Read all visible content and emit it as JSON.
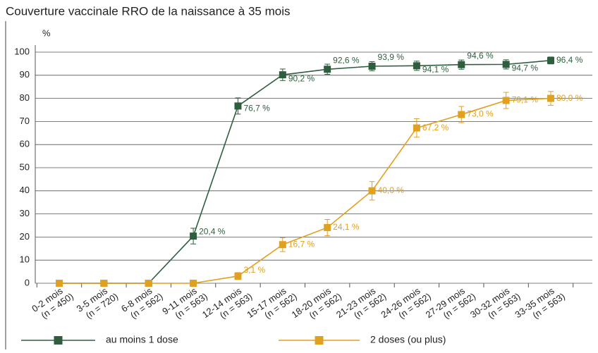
{
  "chart_data": {
    "type": "line",
    "title": "Couverture vaccinale RRO de la naissance à 35 mois",
    "y_label": "%",
    "categories": [
      [
        "0-2 mois",
        "(n = 450)"
      ],
      [
        "3-5 mois",
        "(n = 720)"
      ],
      [
        "6-8 mois",
        "(n = 562)"
      ],
      [
        "9-11 mois",
        "(n = 563)"
      ],
      [
        "12-14 mois",
        "(n = 563)"
      ],
      [
        "15-17 mois",
        "(n = 562)"
      ],
      [
        "18-20 mois",
        "(n = 562)"
      ],
      [
        "21-23 mois",
        "(n = 562)"
      ],
      [
        "24-26 mois",
        "(n = 562)"
      ],
      [
        "27-29 mois",
        "(n = 562)"
      ],
      [
        "30-32 mois",
        "(n = 563)"
      ],
      [
        "33-35 mois",
        "(n = 563)"
      ]
    ],
    "series": [
      {
        "name": "au moins 1 dose",
        "color": "#2e5e3e",
        "values": [
          0,
          0,
          0,
          20.4,
          76.7,
          90.2,
          92.6,
          93.9,
          94.1,
          94.6,
          94.7,
          96.4
        ],
        "errors": [
          null,
          null,
          null,
          3.4,
          3.5,
          2.5,
          2.2,
          2,
          2,
          2,
          2,
          1.5
        ],
        "value_labels": [
          null,
          null,
          null,
          "20,4 %",
          "76,7 %",
          "90,2 %",
          "92,6 %",
          "93,9 %",
          "94,1 %",
          "94,6 %",
          "94,7 %",
          "96,4 %"
        ]
      },
      {
        "name": "2 doses (ou plus)",
        "color": "#e0a020",
        "values": [
          0,
          0,
          0,
          0,
          3.1,
          16.7,
          24.1,
          40.0,
          67.2,
          73.0,
          79.1,
          80.0
        ],
        "errors": [
          null,
          null,
          null,
          null,
          1.5,
          3,
          3.5,
          4,
          4,
          3.5,
          3.5,
          3
        ],
        "value_labels": [
          null,
          null,
          null,
          null,
          "3,1 %",
          "16,7 %",
          "24,1 %",
          "40,0 %",
          "67,2 %",
          "73,0 %",
          "79,1 %",
          "80,0 %"
        ]
      }
    ],
    "ylim": [
      0,
      100
    ],
    "yticks": [
      0,
      10,
      20,
      30,
      40,
      50,
      60,
      70,
      80,
      90,
      100
    ],
    "grid": true
  }
}
